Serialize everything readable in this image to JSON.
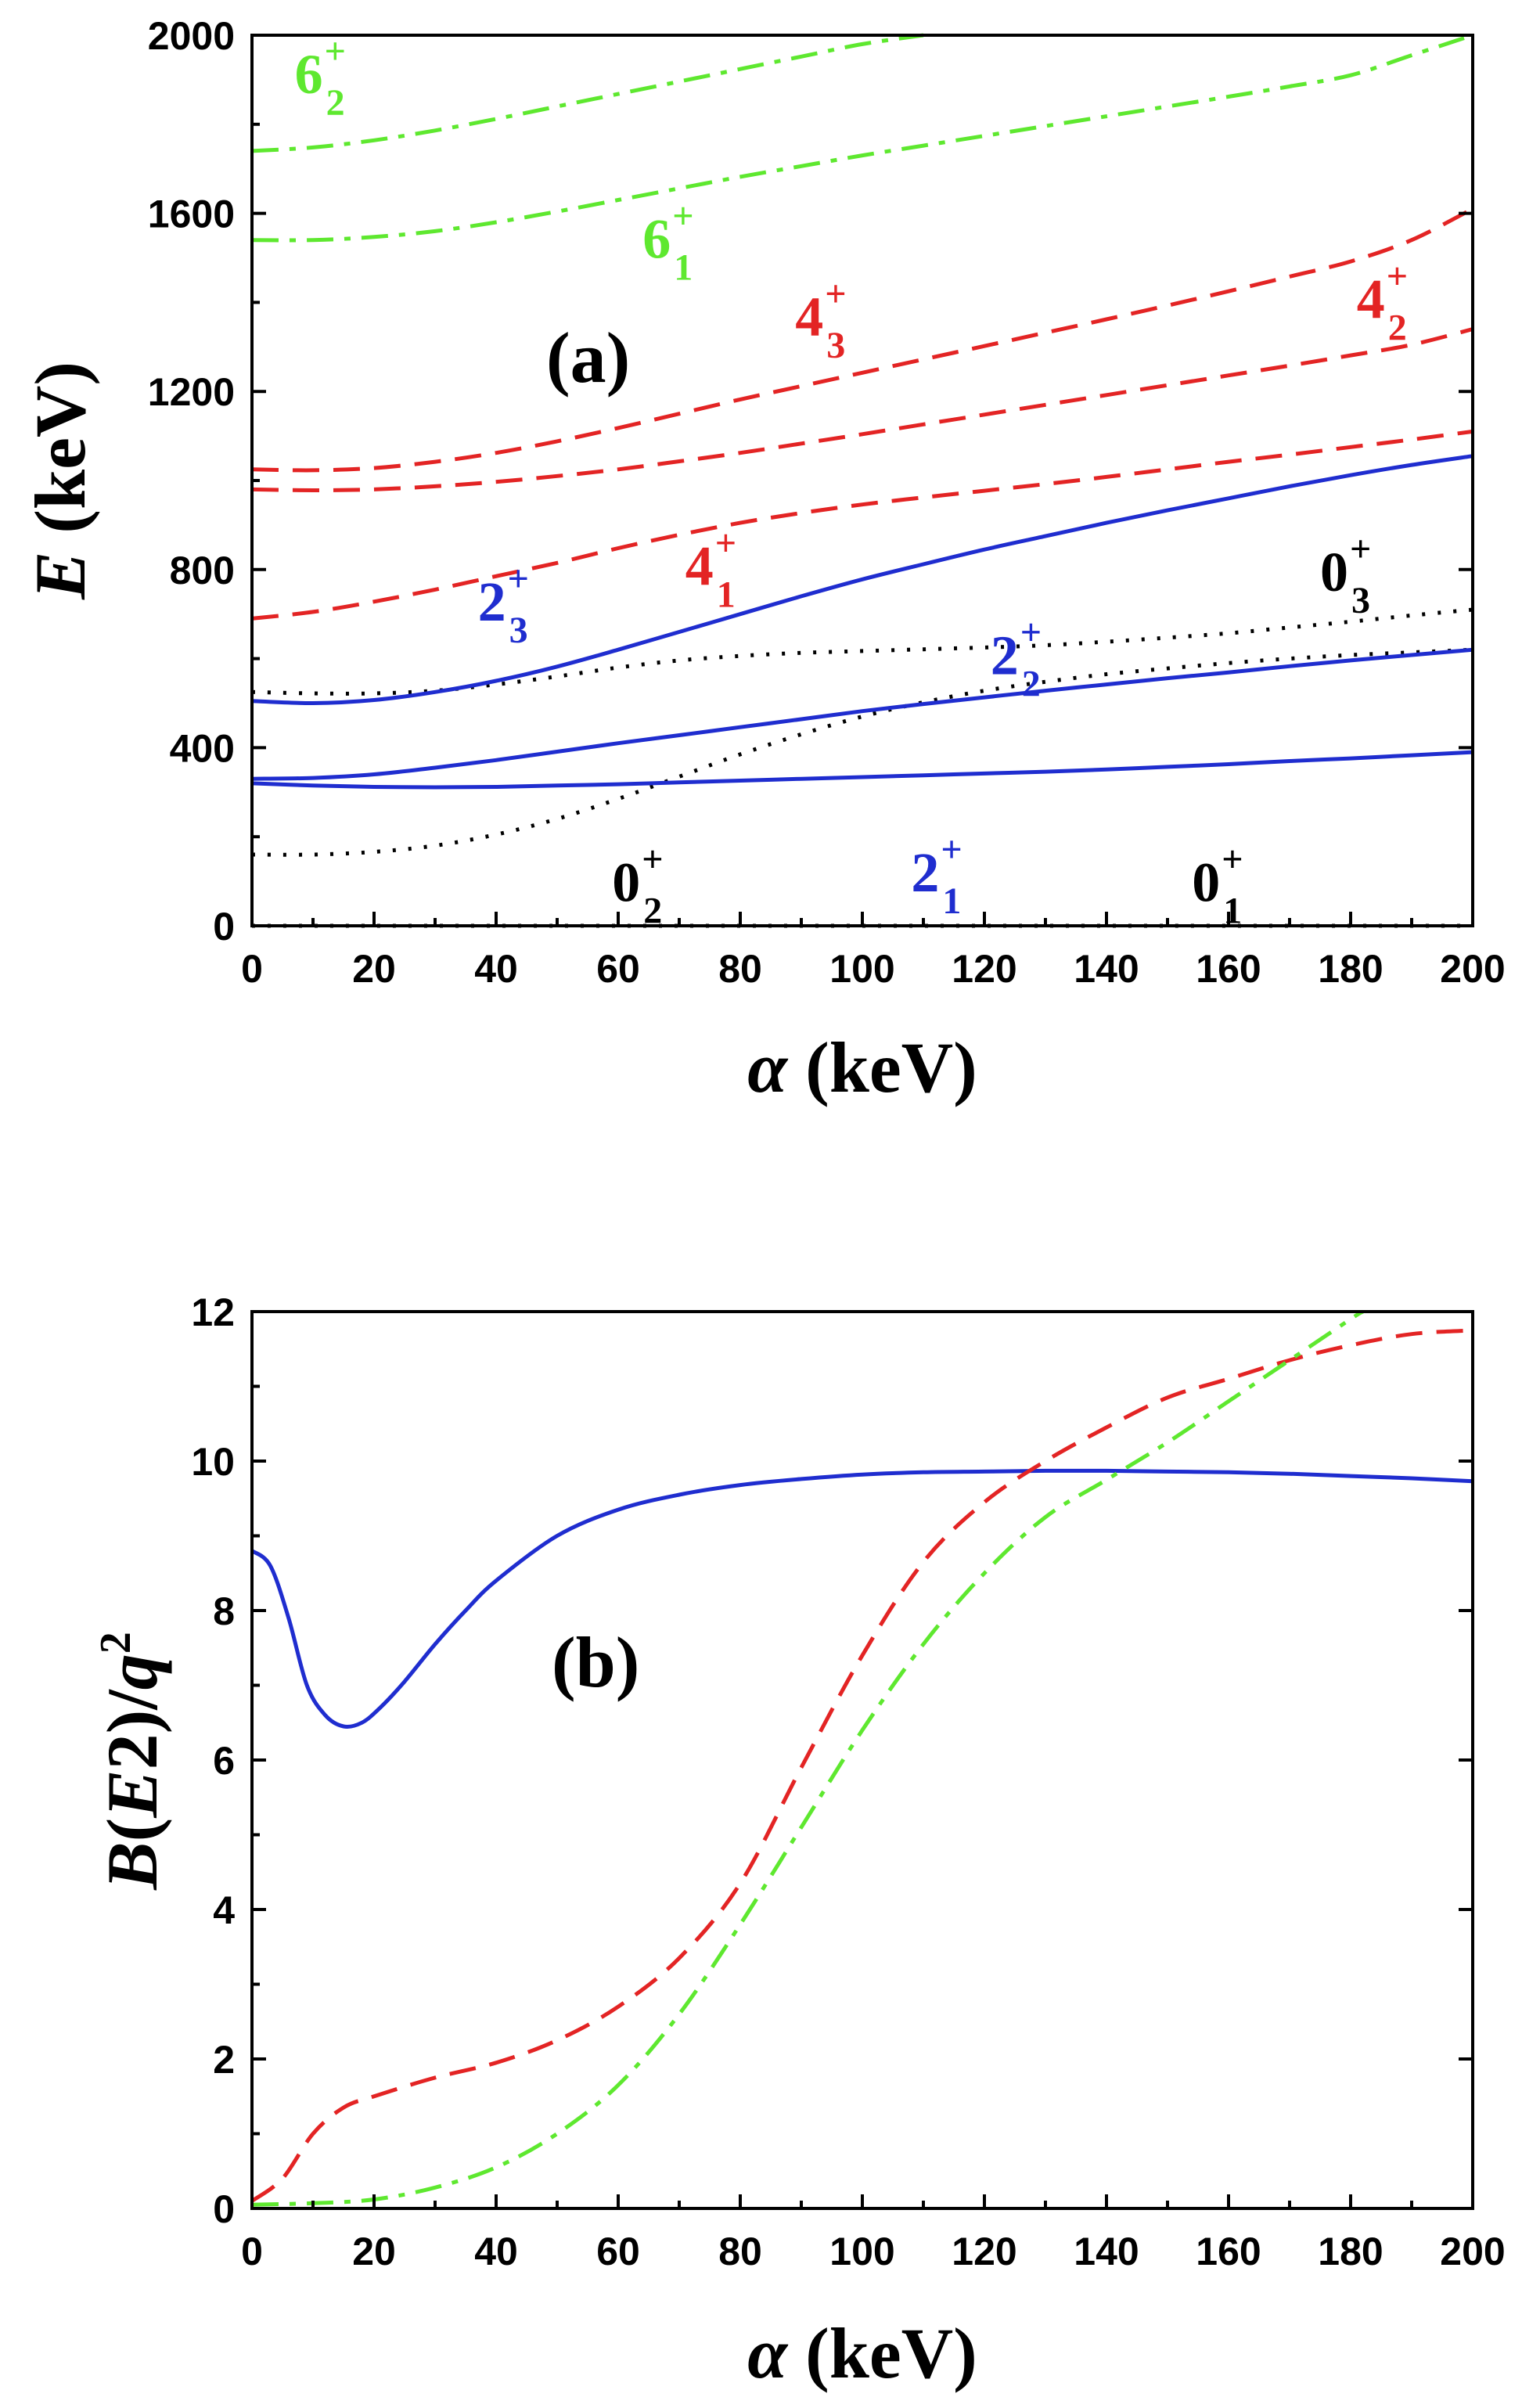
{
  "colors": {
    "blue": "#1f2dcf",
    "red": "#e32424",
    "green": "#5ee82f",
    "black": "#000000"
  },
  "chart_data": [
    {
      "type": "line",
      "panel_label": "(a)",
      "xlabel": "α (keV)",
      "ylabel": "E (keV)",
      "xlim": [
        0,
        200
      ],
      "ylim": [
        0,
        2000
      ],
      "xticks": [
        0,
        20,
        40,
        60,
        80,
        100,
        120,
        140,
        160,
        180,
        200
      ],
      "yticks": [
        0,
        400,
        800,
        1200,
        1600,
        2000
      ],
      "grid": false,
      "series": [
        {
          "name": "0_1^+",
          "style": "dotted",
          "color": "#000000",
          "x": [
            0,
            50,
            100,
            150,
            200
          ],
          "y": [
            0,
            0,
            0,
            0,
            0
          ]
        },
        {
          "name": "0_2^+",
          "style": "dotted",
          "color": "#000000",
          "x": [
            0,
            10,
            20,
            30,
            40,
            50,
            60,
            70,
            80,
            90,
            100,
            110,
            120,
            130,
            140,
            150,
            160,
            170,
            180,
            190,
            200
          ],
          "y": [
            160,
            160,
            166,
            180,
            205,
            240,
            285,
            335,
            385,
            430,
            470,
            502,
            528,
            548,
            565,
            578,
            590,
            600,
            608,
            614,
            620
          ]
        },
        {
          "name": "0_3^+",
          "style": "dotted",
          "color": "#000000",
          "x": [
            0,
            10,
            20,
            30,
            40,
            50,
            60,
            70,
            80,
            90,
            100,
            110,
            120,
            130,
            140,
            150,
            160,
            170,
            180,
            190,
            200
          ],
          "y": [
            525,
            522,
            522,
            528,
            542,
            560,
            580,
            596,
            606,
            613,
            617,
            621,
            625,
            630,
            638,
            647,
            657,
            670,
            683,
            697,
            710
          ]
        },
        {
          "name": "2_1^+",
          "style": "solid",
          "color": "#1f2dcf",
          "x": [
            0,
            10,
            20,
            30,
            40,
            50,
            60,
            70,
            80,
            90,
            100,
            110,
            120,
            130,
            140,
            150,
            160,
            170,
            180,
            190,
            200
          ],
          "y": [
            320,
            315,
            312,
            311,
            312,
            315,
            318,
            322,
            326,
            330,
            334,
            338,
            342,
            346,
            351,
            357,
            363,
            370,
            376,
            383,
            390
          ]
        },
        {
          "name": "2_2^+",
          "style": "solid",
          "color": "#1f2dcf",
          "x": [
            0,
            10,
            20,
            30,
            40,
            50,
            60,
            70,
            80,
            90,
            100,
            110,
            120,
            130,
            140,
            150,
            160,
            170,
            180,
            190,
            200
          ],
          "y": [
            330,
            332,
            340,
            355,
            372,
            391,
            410,
            428,
            446,
            464,
            482,
            498,
            513,
            528,
            542,
            556,
            569,
            583,
            596,
            608,
            620
          ]
        },
        {
          "name": "2_3^+",
          "style": "solid",
          "color": "#1f2dcf",
          "x": [
            0,
            10,
            20,
            30,
            40,
            50,
            60,
            70,
            80,
            90,
            100,
            110,
            120,
            130,
            140,
            150,
            160,
            170,
            180,
            190,
            200
          ],
          "y": [
            505,
            500,
            507,
            525,
            550,
            582,
            620,
            660,
            700,
            740,
            778,
            812,
            845,
            875,
            905,
            933,
            960,
            987,
            1012,
            1035,
            1055
          ]
        },
        {
          "name": "4_1^+",
          "style": "dashed",
          "color": "#e32424",
          "x": [
            0,
            10,
            20,
            30,
            40,
            50,
            60,
            70,
            80,
            90,
            100,
            110,
            120,
            130,
            140,
            150,
            160,
            170,
            180,
            190,
            200
          ],
          "y": [
            690,
            705,
            728,
            755,
            785,
            815,
            848,
            878,
            905,
            927,
            946,
            962,
            977,
            992,
            1008,
            1025,
            1042,
            1058,
            1075,
            1092,
            1110
          ]
        },
        {
          "name": "4_2^+",
          "style": "dashed",
          "color": "#e32424",
          "x": [
            0,
            10,
            20,
            30,
            40,
            50,
            60,
            70,
            80,
            90,
            100,
            110,
            120,
            130,
            140,
            150,
            160,
            170,
            180,
            190,
            200
          ],
          "y": [
            980,
            978,
            980,
            987,
            997,
            1010,
            1025,
            1043,
            1062,
            1083,
            1104,
            1126,
            1148,
            1170,
            1192,
            1214,
            1236,
            1258,
            1281,
            1305,
            1340
          ]
        },
        {
          "name": "4_3^+",
          "style": "dashed",
          "color": "#e32424",
          "x": [
            0,
            10,
            20,
            30,
            40,
            50,
            60,
            70,
            80,
            90,
            100,
            110,
            120,
            130,
            140,
            150,
            160,
            170,
            180,
            190,
            200
          ],
          "y": [
            1025,
            1023,
            1028,
            1042,
            1062,
            1088,
            1118,
            1150,
            1182,
            1212,
            1242,
            1272,
            1302,
            1332,
            1362,
            1393,
            1425,
            1458,
            1492,
            1540,
            1610
          ]
        },
        {
          "name": "6_1^+",
          "style": "dash-dot",
          "color": "#5ee82f",
          "x": [
            0,
            10,
            20,
            30,
            40,
            50,
            60,
            70,
            80,
            90,
            100,
            110,
            120,
            130,
            140,
            150,
            160,
            170,
            180,
            190,
            200
          ],
          "y": [
            1540,
            1540,
            1547,
            1560,
            1580,
            1604,
            1630,
            1656,
            1682,
            1706,
            1730,
            1752,
            1774,
            1796,
            1818,
            1840,
            1862,
            1885,
            1910,
            1955,
            2000
          ]
        },
        {
          "name": "6_2^+",
          "style": "dash-dot",
          "color": "#5ee82f",
          "x": [
            0,
            10,
            20,
            30,
            40,
            50,
            60,
            70,
            80,
            90,
            100,
            110
          ],
          "y": [
            1740,
            1748,
            1764,
            1786,
            1812,
            1840,
            1868,
            1896,
            1924,
            1952,
            1980,
            2000
          ]
        }
      ],
      "state_labels": [
        {
          "main": "6",
          "sub": "2",
          "sup": "+",
          "color": "#5ee82f",
          "x": 7,
          "y": 1870
        },
        {
          "main": "6",
          "sub": "1",
          "sup": "+",
          "color": "#5ee82f",
          "x": 64,
          "y": 1500
        },
        {
          "main": "4",
          "sub": "3",
          "sup": "+",
          "color": "#e32424",
          "x": 89,
          "y": 1325
        },
        {
          "main": "4",
          "sub": "2",
          "sup": "+",
          "color": "#e32424",
          "x": 181,
          "y": 1365
        },
        {
          "main": "4",
          "sub": "1",
          "sup": "+",
          "color": "#e32424",
          "x": 71,
          "y": 765
        },
        {
          "main": "2",
          "sub": "3",
          "sup": "+",
          "color": "#1f2dcf",
          "x": 37,
          "y": 685
        },
        {
          "main": "2",
          "sub": "2",
          "sup": "+",
          "color": "#1f2dcf",
          "x": 121,
          "y": 565
        },
        {
          "main": "2",
          "sub": "1",
          "sup": "+",
          "color": "#1f2dcf",
          "x": 108,
          "y": 77
        },
        {
          "main": "0",
          "sub": "3",
          "sup": "+",
          "color": "#000000",
          "x": 175,
          "y": 752
        },
        {
          "main": "0",
          "sub": "2",
          "sup": "+",
          "color": "#000000",
          "x": 59,
          "y": 55
        },
        {
          "main": "0",
          "sub": "1",
          "sup": "+",
          "color": "#000000",
          "x": 154,
          "y": 55
        }
      ]
    },
    {
      "type": "line",
      "panel_label": "(b)",
      "xlabel": "α (keV)",
      "ylabel": "B(E2)/q²",
      "xlim": [
        0,
        200
      ],
      "ylim": [
        0,
        12
      ],
      "xticks": [
        0,
        20,
        40,
        60,
        80,
        100,
        120,
        140,
        160,
        180,
        200
      ],
      "yticks": [
        0,
        2,
        4,
        6,
        8,
        10,
        12
      ],
      "grid": false,
      "series": [
        {
          "style": "solid",
          "color": "#1f2dcf",
          "x": [
            0,
            3,
            6,
            9,
            12,
            15,
            18,
            21,
            25,
            30,
            35,
            40,
            50,
            60,
            70,
            80,
            90,
            100,
            110,
            120,
            130,
            140,
            150,
            160,
            170,
            180,
            190,
            200
          ],
          "y": [
            8.8,
            8.6,
            7.9,
            7.0,
            6.6,
            6.45,
            6.5,
            6.7,
            7.05,
            7.55,
            8.0,
            8.4,
            9.0,
            9.35,
            9.55,
            9.68,
            9.76,
            9.82,
            9.85,
            9.86,
            9.87,
            9.87,
            9.86,
            9.85,
            9.83,
            9.8,
            9.77,
            9.73
          ]
        },
        {
          "style": "dashed",
          "color": "#e32424",
          "x": [
            0,
            5,
            10,
            15,
            20,
            30,
            40,
            50,
            60,
            70,
            80,
            90,
            100,
            110,
            120,
            130,
            140,
            150,
            160,
            170,
            180,
            190,
            200
          ],
          "y": [
            0.1,
            0.4,
            1.0,
            1.35,
            1.5,
            1.75,
            1.95,
            2.25,
            2.7,
            3.35,
            4.35,
            5.9,
            7.4,
            8.65,
            9.45,
            10.0,
            10.45,
            10.85,
            11.1,
            11.35,
            11.55,
            11.7,
            11.75
          ]
        },
        {
          "style": "dash-dot",
          "color": "#5ee82f",
          "x": [
            0,
            10,
            20,
            30,
            40,
            50,
            60,
            70,
            80,
            90,
            100,
            110,
            120,
            130,
            140,
            150,
            160,
            170,
            180,
            182
          ],
          "y": [
            0.05,
            0.07,
            0.12,
            0.28,
            0.55,
            1.0,
            1.65,
            2.6,
            3.8,
            5.1,
            6.4,
            7.55,
            8.5,
            9.25,
            9.75,
            10.25,
            10.8,
            11.35,
            11.9,
            12.0
          ]
        }
      ]
    }
  ]
}
